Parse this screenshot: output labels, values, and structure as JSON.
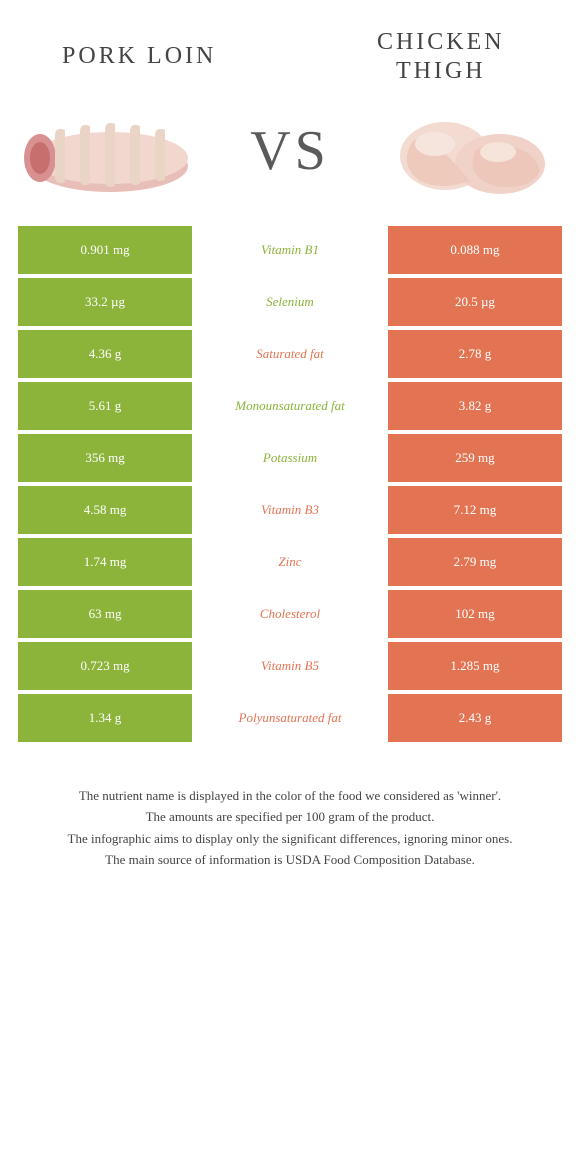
{
  "colors": {
    "left": "#8cb33a",
    "right": "#e37453",
    "mid_bg": "#ffffff",
    "mid_left_text": "#8cb33a",
    "mid_right_text": "#e37453"
  },
  "header": {
    "left_title": "Pork loin",
    "right_title": "Chicken thigh",
    "vs": "VS"
  },
  "rows": [
    {
      "left": "0.901 mg",
      "mid": "Vitamin B1",
      "right": "0.088 mg",
      "winner": "left"
    },
    {
      "left": "33.2 µg",
      "mid": "Selenium",
      "right": "20.5 µg",
      "winner": "left"
    },
    {
      "left": "4.36 g",
      "mid": "Saturated fat",
      "right": "2.78 g",
      "winner": "right"
    },
    {
      "left": "5.61 g",
      "mid": "Monounsaturated fat",
      "right": "3.82 g",
      "winner": "left"
    },
    {
      "left": "356 mg",
      "mid": "Potassium",
      "right": "259 mg",
      "winner": "left"
    },
    {
      "left": "4.58 mg",
      "mid": "Vitamin B3",
      "right": "7.12 mg",
      "winner": "right"
    },
    {
      "left": "1.74 mg",
      "mid": "Zinc",
      "right": "2.79 mg",
      "winner": "right"
    },
    {
      "left": "63 mg",
      "mid": "Cholesterol",
      "right": "102 mg",
      "winner": "right"
    },
    {
      "left": "0.723 mg",
      "mid": "Vitamin B5",
      "right": "1.285 mg",
      "winner": "right"
    },
    {
      "left": "1.34 g",
      "mid": "Polyunsaturated fat",
      "right": "2.43 g",
      "winner": "right"
    }
  ],
  "footer": {
    "line1": "The nutrient name is displayed in the color of the food we considered as 'winner'.",
    "line2": "The amounts are specified per 100 gram of the product.",
    "line3": "The infographic aims to display only the significant differences, ignoring minor ones.",
    "line4": "The main source of information is USDA Food Composition Database."
  }
}
